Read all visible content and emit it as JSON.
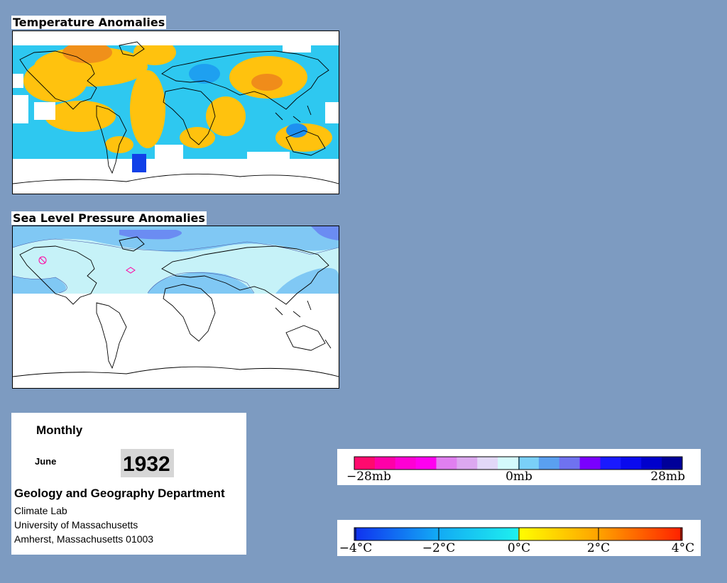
{
  "temperature_map": {
    "title": "Temperature Anomalies"
  },
  "pressure_map": {
    "title": "Sea Level Pressure Anomalies"
  },
  "info": {
    "period": "Monthly",
    "month": "June",
    "year": "1932",
    "department": "Geology and Geography Department",
    "address_lines": [
      "Climate Lab",
      "University of Massachusetts",
      "Amherst, Massachusetts 01003"
    ]
  },
  "pressure_legend": {
    "colors": [
      "#ff0a6e",
      "#ff00a8",
      "#ff00d4",
      "#ff00f0",
      "#e07ff0",
      "#dca8f0",
      "#e2d8f8",
      "#d4fafc",
      "#7ad0f8",
      "#5aa0f0",
      "#6f72f0",
      "#7a00ff",
      "#1a1aff",
      "#0a0aee",
      "#0000cc",
      "#000099"
    ],
    "tick_labels": [
      "−28mb",
      "0mb",
      "28mb"
    ]
  },
  "temperature_legend": {
    "colors": [
      "#1030f0",
      "#0a70f8",
      "#12b4f2",
      "#1ee0ee",
      "#ffff00",
      "#ffcc00",
      "#ff9000",
      "#ff4000"
    ],
    "tick_labels": [
      "−4°C",
      "−2°C",
      "0°C",
      "2°C",
      "4°C"
    ]
  },
  "colors": {
    "background": "#7d9bc1",
    "panel": "#ffffff",
    "warm_anomaly": "#ffc20e",
    "cold_anomaly": "#2ec8f0",
    "pressure_low": "#c6f2f8",
    "pressure_high": "#80c8f4"
  }
}
